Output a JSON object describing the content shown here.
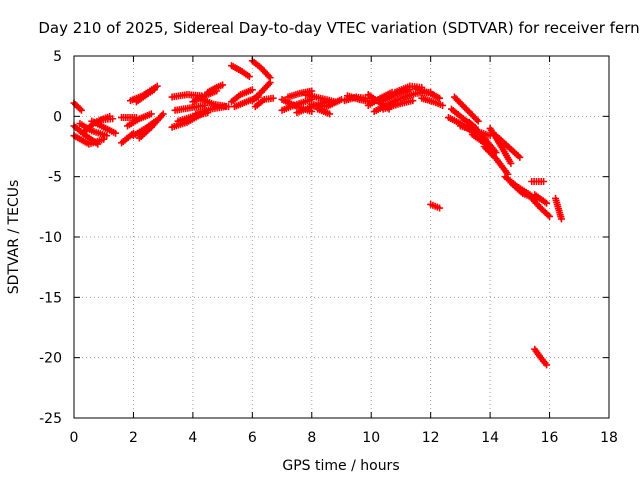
{
  "chart_data": {
    "type": "scatter",
    "title": "Day 210 of 2025, Sidereal Day-to-day VTEC variation (SDTVAR) for receiver fern",
    "xlabel": "GPS time / hours",
    "ylabel": "SDTVAR / TECUs",
    "xlim": [
      0,
      18
    ],
    "ylim": [
      -25,
      5
    ],
    "xticks": [
      0,
      2,
      4,
      6,
      8,
      10,
      12,
      14,
      16,
      18
    ],
    "yticks": [
      5,
      0,
      -5,
      -10,
      -15,
      -20,
      -25
    ],
    "xtick_labels": [
      "0",
      "2",
      "4",
      "6",
      "8",
      "10",
      "12",
      "14",
      "16",
      "18"
    ],
    "ytick_labels": [
      "5",
      "0",
      "-5",
      "-10",
      "-15",
      "-20",
      "-25"
    ],
    "grid": true,
    "marker": "plus",
    "color": "#ff0000",
    "series": [
      {
        "name": "SDTVAR",
        "segments": [
          {
            "x": [
              0.0,
              0.25
            ],
            "y": [
              1.1,
              0.5
            ]
          },
          {
            "x": [
              0.0,
              0.4,
              0.8
            ],
            "y": [
              -0.8,
              -1.6,
              -2.3
            ]
          },
          {
            "x": [
              0.0,
              0.5,
              1.0
            ],
            "y": [
              -1.6,
              -2.3,
              -1.9
            ]
          },
          {
            "x": [
              0.2,
              0.6,
              1.1
            ],
            "y": [
              -0.6,
              -1.2,
              -1.6
            ]
          },
          {
            "x": [
              0.3,
              0.7,
              1.2
            ],
            "y": [
              -1.4,
              -0.5,
              0.0
            ]
          },
          {
            "x": [
              0.6,
              1.0,
              1.4
            ],
            "y": [
              -0.4,
              -0.9,
              -1.4
            ]
          },
          {
            "x": [
              0.9,
              1.3
            ],
            "y": [
              -0.3,
              -0.2
            ]
          },
          {
            "x": [
              1.6,
              2.0
            ],
            "y": [
              -2.2,
              -1.4
            ]
          },
          {
            "x": [
              1.6,
              2.1
            ],
            "y": [
              -0.1,
              -0.1
            ]
          },
          {
            "x": [
              1.8,
              2.2,
              2.6
            ],
            "y": [
              -0.8,
              -0.2,
              0.2
            ]
          },
          {
            "x": [
              2.0,
              2.4,
              2.8
            ],
            "y": [
              -1.6,
              -1.0,
              -0.3
            ]
          },
          {
            "x": [
              2.2,
              2.6,
              3.0
            ],
            "y": [
              -1.8,
              -0.9,
              0.2
            ]
          },
          {
            "x": [
              1.9,
              2.3,
              2.8
            ],
            "y": [
              1.3,
              1.7,
              2.5
            ]
          },
          {
            "x": [
              2.1,
              2.5,
              2.7
            ],
            "y": [
              1.2,
              1.9,
              2.2
            ]
          },
          {
            "x": [
              3.3,
              3.8,
              4.3
            ],
            "y": [
              1.6,
              1.8,
              1.7
            ]
          },
          {
            "x": [
              3.3,
              3.8,
              4.3
            ],
            "y": [
              -0.9,
              -0.5,
              0.2
            ]
          },
          {
            "x": [
              3.4,
              3.9,
              4.4
            ],
            "y": [
              0.5,
              0.7,
              0.9
            ]
          },
          {
            "x": [
              3.5,
              4.0,
              4.5
            ],
            "y": [
              -0.4,
              0.0,
              0.3
            ]
          },
          {
            "x": [
              4.0,
              4.4,
              4.8
            ],
            "y": [
              1.2,
              1.7,
              2.1
            ]
          },
          {
            "x": [
              4.1,
              4.6,
              5.1
            ],
            "y": [
              0.2,
              0.6,
              0.8
            ]
          },
          {
            "x": [
              4.2,
              4.7,
              5.2
            ],
            "y": [
              1.5,
              1.0,
              0.8
            ]
          },
          {
            "x": [
              4.5,
              4.8,
              5.0
            ],
            "y": [
              2.0,
              2.4,
              2.6
            ]
          },
          {
            "x": [
              5.3,
              5.6,
              6.0
            ],
            "y": [
              1.2,
              1.8,
              2.2
            ]
          },
          {
            "x": [
              5.4,
              5.8,
              6.2
            ],
            "y": [
              0.8,
              1.2,
              1.6
            ]
          },
          {
            "x": [
              5.3,
              5.6,
              5.9
            ],
            "y": [
              4.2,
              3.8,
              3.3
            ]
          },
          {
            "x": [
              6.0,
              6.3,
              6.6
            ],
            "y": [
              4.6,
              4.0,
              3.2
            ]
          },
          {
            "x": [
              6.0,
              6.3,
              6.6
            ],
            "y": [
              1.3,
              2.0,
              2.8
            ]
          },
          {
            "x": [
              6.1,
              6.4,
              6.7
            ],
            "y": [
              0.8,
              1.4,
              1.5
            ]
          },
          {
            "x": [
              7.0,
              7.5,
              8.0
            ],
            "y": [
              0.5,
              1.0,
              1.4
            ]
          },
          {
            "x": [
              7.0,
              7.5,
              8.0
            ],
            "y": [
              1.4,
              0.8,
              0.4
            ]
          },
          {
            "x": [
              7.2,
              7.6,
              8.0
            ],
            "y": [
              1.6,
              1.9,
              2.1
            ]
          },
          {
            "x": [
              7.5,
              8.0,
              8.5
            ],
            "y": [
              0.3,
              0.8,
              1.2
            ]
          },
          {
            "x": [
              7.8,
              8.3,
              8.8
            ],
            "y": [
              1.8,
              1.5,
              1.2
            ]
          },
          {
            "x": [
              8.0,
              8.5,
              9.0
            ],
            "y": [
              1.0,
              0.8,
              1.4
            ]
          },
          {
            "x": [
              8.2,
              8.6
            ],
            "y": [
              0.6,
              0.2
            ]
          },
          {
            "x": [
              9.1,
              9.5,
              9.8
            ],
            "y": [
              1.3,
              1.6,
              1.5
            ]
          },
          {
            "x": [
              9.2,
              9.6,
              10.0
            ],
            "y": [
              1.7,
              1.4,
              1.2
            ]
          },
          {
            "x": [
              9.9,
              10.3,
              10.6
            ],
            "y": [
              1.8,
              1.1,
              0.6
            ]
          },
          {
            "x": [
              9.9,
              10.3,
              10.7
            ],
            "y": [
              0.9,
              1.5,
              2.0
            ]
          },
          {
            "x": [
              10.1,
              10.5,
              10.9
            ],
            "y": [
              0.4,
              0.9,
              1.4
            ]
          },
          {
            "x": [
              10.3,
              10.8,
              11.3
            ],
            "y": [
              1.2,
              1.8,
              2.2
            ]
          },
          {
            "x": [
              10.4,
              10.9,
              11.4
            ],
            "y": [
              0.6,
              1.0,
              1.3
            ]
          },
          {
            "x": [
              10.8,
              11.3,
              11.7
            ],
            "y": [
              2.0,
              2.5,
              2.4
            ]
          },
          {
            "x": [
              11.0,
              11.5,
              12.0
            ],
            "y": [
              1.5,
              1.9,
              2.0
            ]
          },
          {
            "x": [
              11.5,
              12.0,
              12.3
            ],
            "y": [
              2.3,
              1.9,
              1.5
            ]
          },
          {
            "x": [
              11.7,
              12.1,
              12.4
            ],
            "y": [
              1.5,
              1.2,
              0.9
            ]
          },
          {
            "x": [
              12.0,
              12.3
            ],
            "y": [
              -7.3,
              -7.6
            ]
          },
          {
            "x": [
              12.6,
              13.0,
              13.5
            ],
            "y": [
              -0.1,
              -0.6,
              -1.4
            ]
          },
          {
            "x": [
              12.7,
              13.1,
              13.5
            ],
            "y": [
              0.6,
              -0.2,
              -0.9
            ]
          },
          {
            "x": [
              12.8,
              13.2,
              13.6
            ],
            "y": [
              1.6,
              0.6,
              -0.4
            ]
          },
          {
            "x": [
              13.0,
              13.5,
              14.0
            ],
            "y": [
              -0.8,
              -1.2,
              -1.6
            ]
          },
          {
            "x": [
              13.3,
              13.8,
              14.2
            ],
            "y": [
              -0.5,
              -1.8,
              -3.0
            ]
          },
          {
            "x": [
              13.4,
              13.8,
              14.0
            ],
            "y": [
              -1.5,
              -2.2,
              -2.5
            ]
          },
          {
            "x": [
              13.8,
              14.2,
              14.6
            ],
            "y": [
              -2.5,
              -3.5,
              -4.8
            ]
          },
          {
            "x": [
              14.0,
              14.4,
              14.7
            ],
            "y": [
              -1.0,
              -2.6,
              -3.9
            ]
          },
          {
            "x": [
              14.2,
              14.6,
              15.0
            ],
            "y": [
              -1.6,
              -2.5,
              -3.4
            ]
          },
          {
            "x": [
              14.5,
              14.9,
              15.4
            ],
            "y": [
              -5.0,
              -5.8,
              -6.6
            ]
          },
          {
            "x": [
              14.7,
              15.1,
              15.6
            ],
            "y": [
              -5.5,
              -6.4,
              -6.9
            ]
          },
          {
            "x": [
              15.4,
              15.8
            ],
            "y": [
              -5.4,
              -5.4
            ]
          },
          {
            "x": [
              15.5,
              15.9
            ],
            "y": [
              -6.5,
              -7.2
            ]
          },
          {
            "x": [
              15.4,
              15.7,
              16.0
            ],
            "y": [
              -6.8,
              -7.6,
              -8.3
            ]
          },
          {
            "x": [
              16.2,
              16.4
            ],
            "y": [
              -6.8,
              -8.5
            ]
          },
          {
            "x": [
              15.5,
              15.7,
              15.9
            ],
            "y": [
              -19.3,
              -20.0,
              -20.6
            ]
          }
        ]
      }
    ]
  }
}
